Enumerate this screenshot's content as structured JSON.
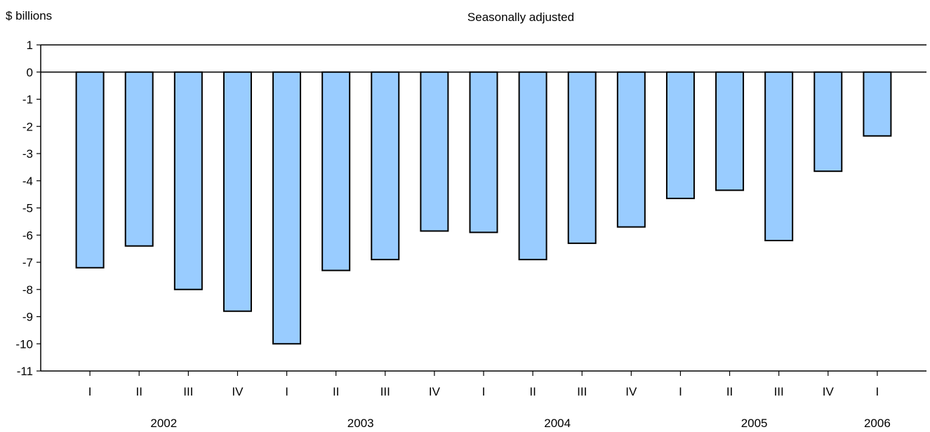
{
  "chart_data": {
    "type": "bar",
    "ylabel": "$ billions",
    "subtitle": "Seasonally adjusted",
    "ylim": [
      -11,
      1
    ],
    "yticks": [
      1,
      0,
      -1,
      -2,
      -3,
      -4,
      -5,
      -6,
      -7,
      -8,
      -9,
      -10,
      -11
    ],
    "categories": [
      "I",
      "II",
      "III",
      "IV",
      "I",
      "II",
      "III",
      "IV",
      "I",
      "II",
      "III",
      "IV",
      "I",
      "II",
      "III",
      "IV",
      "I"
    ],
    "year_labels": [
      "2002",
      "2003",
      "2004",
      "2005",
      "2006"
    ],
    "values": [
      -7.2,
      -6.4,
      -8.0,
      -8.8,
      -10.0,
      -7.3,
      -6.9,
      -5.85,
      -5.9,
      -6.9,
      -6.3,
      -5.7,
      -4.65,
      -4.35,
      -6.2,
      -3.65,
      -2.35
    ],
    "bar_color": "#99ccff",
    "grid": false
  }
}
